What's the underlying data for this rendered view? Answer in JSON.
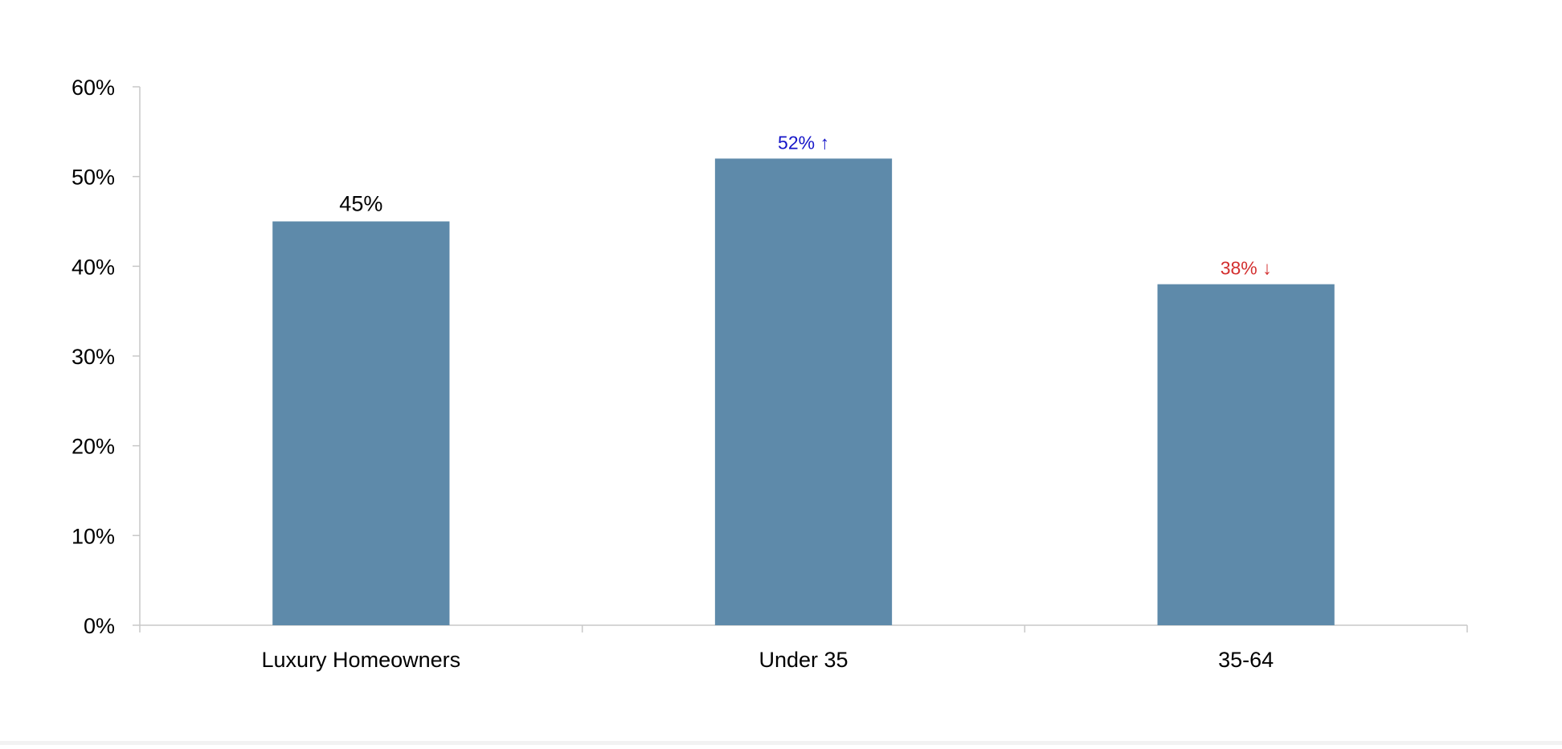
{
  "chart_data": {
    "type": "bar",
    "title": "",
    "xlabel": "",
    "ylabel": "",
    "categories": [
      "Luxury Homeowners",
      "Under 35",
      "35-64"
    ],
    "values": [
      45,
      52,
      38
    ],
    "value_labels": [
      "45%",
      "52% ↑",
      "38% ↓"
    ],
    "label_colors": [
      "#000000",
      "#1515c8",
      "#d32f2f"
    ],
    "y_ticks": [
      0,
      10,
      20,
      30,
      40,
      50,
      60
    ],
    "y_tick_labels": [
      "0%",
      "10%",
      "20%",
      "30%",
      "40%",
      "50%",
      "60%"
    ],
    "ylim": [
      0,
      60
    ],
    "bar_color": "#5e8aaa",
    "axis_color": "#c8c8c8",
    "grid": false,
    "legend": "none"
  }
}
